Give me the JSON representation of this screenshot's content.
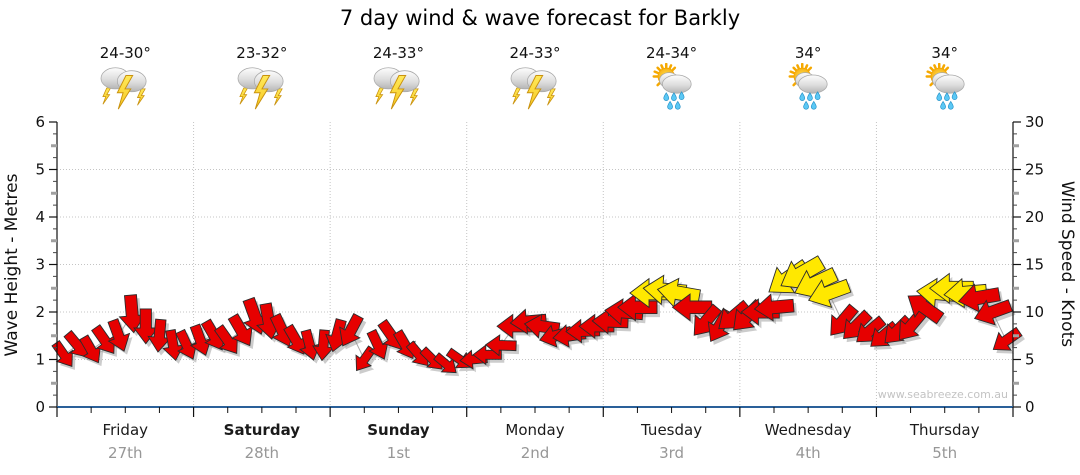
{
  "title": "7 day wind & wave forecast for Barkly",
  "watermark": "www.seabreeze.com.au",
  "days": [
    {
      "name": "Friday",
      "date": "27th",
      "bold": false,
      "temp": "24-30°",
      "icon": "thunderstorm"
    },
    {
      "name": "Saturday",
      "date": "28th",
      "bold": true,
      "temp": "23-32°",
      "icon": "thunderstorm"
    },
    {
      "name": "Sunday",
      "date": "1st",
      "bold": true,
      "temp": "24-33°",
      "icon": "thunderstorm"
    },
    {
      "name": "Monday",
      "date": "2nd",
      "bold": false,
      "temp": "24-33°",
      "icon": "thunderstorm"
    },
    {
      "name": "Tuesday",
      "date": "3rd",
      "bold": false,
      "temp": "24-34°",
      "icon": "sun-showers"
    },
    {
      "name": "Wednesday",
      "date": "4th",
      "bold": false,
      "temp": "34°",
      "icon": "sun-showers"
    },
    {
      "name": "Thursday",
      "date": "5th",
      "bold": false,
      "temp": "34°",
      "icon": "sun-showers"
    }
  ],
  "chart_data": {
    "type": "scatter",
    "marker": "wind-direction-arrow",
    "title": "7 day wind & wave forecast for Barkly",
    "grid": true,
    "left_axis": {
      "label": "Wave Height - Metres",
      "min": 0,
      "max": 6,
      "major_step": 1,
      "ticks": [
        "0",
        "1",
        "2",
        "3",
        "4",
        "5",
        "6"
      ]
    },
    "right_axis": {
      "label": "Wind Speed - Knots",
      "min": 0,
      "max": 30,
      "major_step": 5,
      "ticks": [
        "0",
        "5",
        "10",
        "15",
        "20",
        "25",
        "30"
      ]
    },
    "x_axis": {
      "days": [
        "Friday",
        "Saturday",
        "Sunday",
        "Monday",
        "Tuesday",
        "Wednesday",
        "Thursday"
      ],
      "arrows_per_day": 10
    },
    "colors": {
      "moderate_wind": "#E60000",
      "strong_wind": "#FFE800",
      "arrow_outline": "#2B2B2B",
      "arrow_shadow": "#8E8E8E",
      "gridline": "#C4C4C4",
      "connector": "#ABABAB",
      "bottom_axis": "#2A6099",
      "axis_line": "#111111"
    },
    "wind_arrows_note": "each item = [speed_knots, direction_deg_clockwise_from_pointing_right, color r=red y=yellow]; 10 samples per day, Friday through Thursday",
    "wind_arrows": [
      [
        5.5,
        55,
        "r"
      ],
      [
        6.5,
        50,
        "r"
      ],
      [
        6,
        60,
        "r"
      ],
      [
        7,
        55,
        "r"
      ],
      [
        7.5,
        70,
        "r"
      ],
      [
        9.8,
        85,
        "r"
      ],
      [
        8.5,
        90,
        "r"
      ],
      [
        7.5,
        95,
        "r"
      ],
      [
        6.5,
        80,
        "r"
      ],
      [
        6.5,
        65,
        "r"
      ],
      [
        7,
        70,
        "r"
      ],
      [
        7.5,
        60,
        "r"
      ],
      [
        7,
        55,
        "r"
      ],
      [
        8,
        60,
        "r"
      ],
      [
        9.5,
        70,
        "r"
      ],
      [
        9,
        80,
        "r"
      ],
      [
        8,
        65,
        "r"
      ],
      [
        7,
        60,
        "r"
      ],
      [
        6.5,
        75,
        "r"
      ],
      [
        6.5,
        95,
        "r"
      ],
      [
        7.5,
        105,
        "r"
      ],
      [
        8,
        118,
        "r"
      ],
      [
        5,
        125,
        "r"
      ],
      [
        6.5,
        65,
        "r"
      ],
      [
        7.5,
        55,
        "r"
      ],
      [
        6.5,
        60,
        "r"
      ],
      [
        5.5,
        50,
        "r"
      ],
      [
        5,
        45,
        "r"
      ],
      [
        4.5,
        40,
        "r"
      ],
      [
        5,
        35,
        "r"
      ],
      [
        5,
        175,
        "r"
      ],
      [
        5.5,
        180,
        "r"
      ],
      [
        6.5,
        182,
        "r"
      ],
      [
        8.5,
        180,
        "r"
      ],
      [
        9,
        175,
        "r"
      ],
      [
        8.5,
        188,
        "r"
      ],
      [
        7.5,
        165,
        "r"
      ],
      [
        7.5,
        172,
        "r"
      ],
      [
        8,
        178,
        "r"
      ],
      [
        8.5,
        180,
        "r"
      ],
      [
        9,
        182,
        "r"
      ],
      [
        10,
        185,
        "r"
      ],
      [
        10.5,
        180,
        "r"
      ],
      [
        12,
        180,
        "y"
      ],
      [
        12.3,
        185,
        "y"
      ],
      [
        12,
        190,
        "y"
      ],
      [
        10.5,
        180,
        "r"
      ],
      [
        9,
        130,
        "r"
      ],
      [
        8.5,
        120,
        "r"
      ],
      [
        9.5,
        140,
        "r"
      ],
      [
        9.5,
        135,
        "r"
      ],
      [
        10,
        180,
        "r"
      ],
      [
        10.5,
        175,
        "r"
      ],
      [
        13.5,
        145,
        "y"
      ],
      [
        14,
        150,
        "y"
      ],
      [
        13,
        155,
        "y"
      ],
      [
        12,
        160,
        "y"
      ],
      [
        9,
        130,
        "r"
      ],
      [
        8.5,
        135,
        "r"
      ],
      [
        8,
        140,
        "r"
      ],
      [
        7.5,
        140,
        "r"
      ],
      [
        8,
        135,
        "r"
      ],
      [
        8.5,
        130,
        "r"
      ],
      [
        10.5,
        215,
        "r"
      ],
      [
        12,
        185,
        "y"
      ],
      [
        12.5,
        180,
        "y"
      ],
      [
        12,
        175,
        "y"
      ],
      [
        11.5,
        170,
        "r"
      ],
      [
        10,
        160,
        "r"
      ],
      [
        7,
        145,
        "r"
      ]
    ]
  }
}
